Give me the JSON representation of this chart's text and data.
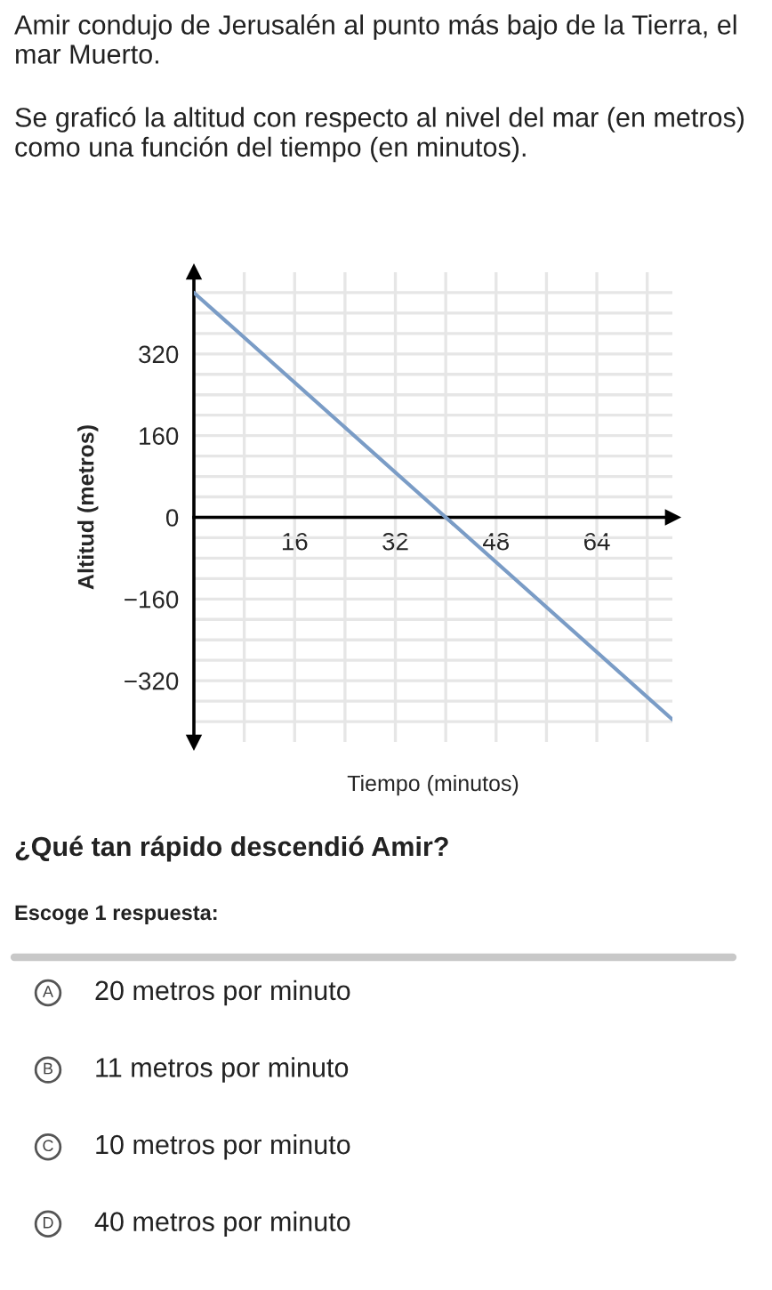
{
  "chart_data": {
    "type": "line",
    "title": "Amir condujo de Jerusalén al punto más bajo de la Tierra, el mar Muerto.",
    "subtitle": "Se graficó la altitud con respecto al nivel del mar (en metros) como una función del tiempo (en minutos).",
    "xlabel": "Tiempo (minutos)",
    "ylabel": "Altitud (metros)",
    "x": [
      0,
      40,
      76
    ],
    "series": [
      {
        "color": "#7a9cc6",
        "values": [
          440,
          0,
          -396
        ]
      }
    ],
    "xlim": [
      0,
      76
    ],
    "ylim": [
      -440,
      480
    ],
    "xticks": [
      {
        "value": 8,
        "label": null
      },
      16,
      {
        "value": 24,
        "label": null
      },
      32,
      {
        "value": 40,
        "label": null
      },
      48,
      {
        "value": 56,
        "label": null
      },
      64,
      {
        "value": 72,
        "label": null
      }
    ],
    "yticks": [
      {
        "value": -400,
        "label": null
      },
      {
        "value": -360,
        "label": null
      },
      {
        "value": -320,
        "label": "−320"
      },
      {
        "value": -280,
        "label": null
      },
      {
        "value": -240,
        "label": null
      },
      {
        "value": -200,
        "label": null
      },
      {
        "value": -160,
        "label": "−160"
      },
      {
        "value": -120,
        "label": null
      },
      {
        "value": -80,
        "label": null
      },
      {
        "value": -40,
        "label": null
      },
      0,
      {
        "value": 40,
        "label": null
      },
      {
        "value": 80,
        "label": null
      },
      {
        "value": 120,
        "label": null
      },
      160,
      {
        "value": 200,
        "label": null
      },
      {
        "value": 240,
        "label": null
      },
      {
        "value": 280,
        "label": null
      },
      320,
      {
        "value": 360,
        "label": null
      },
      {
        "value": 400,
        "label": null
      },
      {
        "value": 440,
        "label": null
      }
    ],
    "grid": true,
    "marker": "none",
    "line_style": "solid",
    "legend": false,
    "annotations": [
      "¿Qué tan rápido descendió Amir?",
      "Escoge 1 respuesta:",
      "A",
      "20 metros por minuto",
      "B",
      "11 metros por minuto",
      "C",
      "10 metros por minuto",
      "D",
      "40 metros por minuto"
    ]
  }
}
